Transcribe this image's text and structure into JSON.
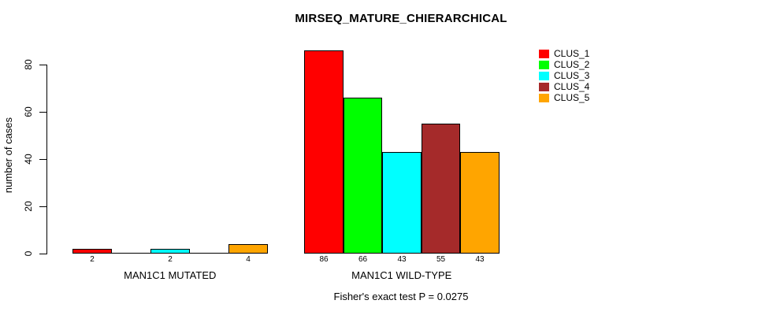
{
  "chart_data": {
    "type": "bar",
    "title": "MIRSEQ_MATURE_CHIERARCHICAL",
    "xlabel": "",
    "ylabel": "number of cases",
    "ylim": [
      0,
      86
    ],
    "y_ticks": [
      0,
      20,
      40,
      60,
      80
    ],
    "grid": false,
    "legend_position": "top-right",
    "categories": [
      "MAN1C1 MUTATED",
      "MAN1C1 WILD-TYPE"
    ],
    "series": [
      {
        "name": "CLUS_1",
        "color": "#FF0000",
        "values": [
          2,
          86
        ]
      },
      {
        "name": "CLUS_2",
        "color": "#00FF00",
        "values": [
          0,
          66
        ]
      },
      {
        "name": "CLUS_3",
        "color": "#00FFFF",
        "values": [
          2,
          43
        ]
      },
      {
        "name": "CLUS_4",
        "color": "#A52A2A",
        "values": [
          0,
          55
        ]
      },
      {
        "name": "CLUS_5",
        "color": "#FFA500",
        "values": [
          4,
          43
        ]
      }
    ],
    "bar_value_labels": {
      "MAN1C1 MUTATED": [
        2,
        null,
        2,
        null,
        4
      ],
      "MAN1C1 WILD-TYPE": [
        86,
        66,
        43,
        55,
        43
      ]
    },
    "annotation": "Fisher's exact test P = 0.0275"
  }
}
